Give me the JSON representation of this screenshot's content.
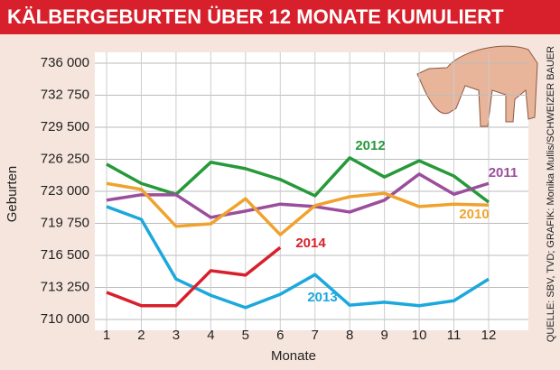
{
  "chart_data": {
    "type": "line",
    "title": "KÄLBERGEBURTEN ÜBER 12 MONATE KUMULIERT",
    "y_label": "Geburten",
    "x_label": "Monate",
    "source": "QUELLE: SBV, TVD; GRAFIK: Monika Mullis/SCHWEIZER BAUER",
    "categories": [
      "1",
      "2",
      "3",
      "4",
      "5",
      "6",
      "7",
      "8",
      "9",
      "10",
      "11",
      "12"
    ],
    "ylim": [
      710000,
      736000
    ],
    "yticks": [
      {
        "value": 710000,
        "label": "710 000"
      },
      {
        "value": 713250,
        "label": "713 250"
      },
      {
        "value": 716500,
        "label": "716 500"
      },
      {
        "value": 719750,
        "label": "719 750"
      },
      {
        "value": 723000,
        "label": "723 000"
      },
      {
        "value": 726250,
        "label": "726 250"
      },
      {
        "value": 729500,
        "label": "729 500"
      },
      {
        "value": 732750,
        "label": "732 750"
      },
      {
        "value": 736000,
        "label": "736 000"
      }
    ],
    "grid": true,
    "series": [
      {
        "name": "2012",
        "color": "#26993a",
        "values": [
          725750,
          723800,
          722700,
          725950,
          725300,
          724200,
          722550,
          726400,
          724450,
          726100,
          724550,
          721900
        ]
      },
      {
        "name": "2011",
        "color": "#9a4e9c",
        "values": [
          722100,
          722650,
          722650,
          720350,
          721000,
          721700,
          721450,
          720900,
          722100,
          724750,
          722700,
          723800
        ]
      },
      {
        "name": "2010",
        "color": "#f0a22e",
        "values": [
          723800,
          723200,
          719450,
          719700,
          722250,
          718600,
          721550,
          722450,
          722800,
          721450,
          721700,
          721600
        ]
      },
      {
        "name": "2013",
        "color": "#1ca8dc",
        "values": [
          721450,
          720150,
          714100,
          712450,
          711200,
          712550,
          714550,
          711450,
          711750,
          711400,
          711900,
          714100
        ]
      },
      {
        "name": "2014",
        "color": "#d7202b",
        "values": [
          712750,
          711400,
          711400,
          714950,
          714500,
          717300,
          null,
          null,
          null,
          null,
          null,
          null
        ]
      }
    ]
  }
}
